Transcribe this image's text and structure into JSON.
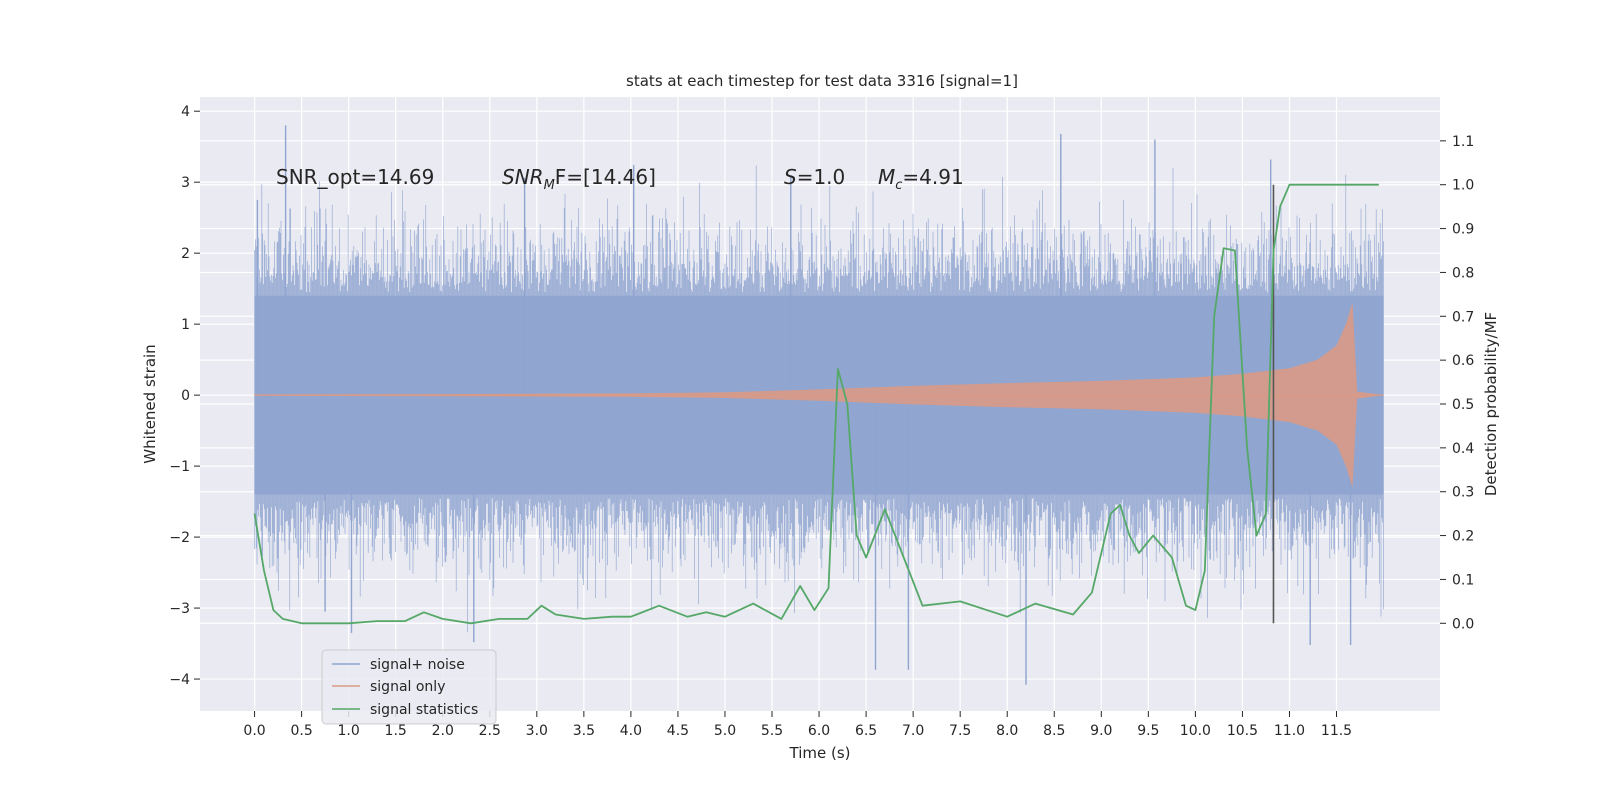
{
  "chart_data": {
    "type": "line",
    "title": "stats at each timestep for test data 3316 [signal=1]",
    "xlabel": "Time (s)",
    "ylabel": "Whitened strain",
    "y2label": "Detection probability/MF",
    "xlim": [
      -0.58,
      12.6
    ],
    "ylim": [
      -4.45,
      4.2
    ],
    "y2lim": [
      -0.2,
      1.2
    ],
    "x_ticks": [
      "0.0",
      "0.5",
      "1.0",
      "1.5",
      "2.0",
      "2.5",
      "3.0",
      "3.5",
      "4.0",
      "4.5",
      "5.0",
      "5.5",
      "6.0",
      "6.5",
      "7.0",
      "7.5",
      "8.0",
      "8.5",
      "9.0",
      "9.5",
      "10.0",
      "10.5",
      "11.0",
      "11.5"
    ],
    "y_ticks": [
      "4",
      "3",
      "2",
      "1",
      "0",
      "−1",
      "−2",
      "−3",
      "−4"
    ],
    "y2_ticks": [
      "1.1",
      "1.0",
      "0.9",
      "0.8",
      "0.7",
      "0.6",
      "0.5",
      "0.4",
      "0.3",
      "0.2",
      "0.1",
      "0.0"
    ],
    "grid": true,
    "legend_position": "lower-left",
    "colors": {
      "noise": "#8fa4cf",
      "signal": "#d99a85",
      "stats": "#55a868",
      "marker": "#555555",
      "plot_bg": "#eaeaf2",
      "grid": "#ffffff"
    },
    "annotations": {
      "snr_opt": "SNR_opt=14.69",
      "snr_mf_main": "SNR",
      "snr_mf_sub": "M",
      "snr_mf_tail": "F=[14.46]",
      "s_main": "S",
      "s_tail": "=1.0",
      "mc_main": "M",
      "mc_sub": "c",
      "mc_tail": "=4.91"
    },
    "series": [
      {
        "name": "signal+ noise",
        "x_range": [
          0.0,
          12.0
        ],
        "typical_band": [
          -1.4,
          1.4
        ],
        "peaks": [
          [
            0.03,
            2.75
          ],
          [
            0.33,
            3.8
          ],
          [
            0.75,
            -3.05
          ],
          [
            1.03,
            -3.35
          ],
          [
            2.33,
            -3.48
          ],
          [
            2.87,
            3.06
          ],
          [
            4.03,
            3.24
          ],
          [
            5.7,
            3.08
          ],
          [
            6.6,
            -3.87
          ],
          [
            6.95,
            -3.87
          ],
          [
            8.2,
            -4.08
          ],
          [
            8.57,
            3.68
          ],
          [
            9.57,
            3.6
          ],
          [
            10.8,
            3.32
          ],
          [
            11.22,
            -3.52
          ],
          [
            11.65,
            -3.52
          ]
        ]
      },
      {
        "name": "signal only",
        "x_range": [
          0.0,
          12.0
        ],
        "envelope": [
          [
            0.0,
            0.01
          ],
          [
            2.0,
            0.015
          ],
          [
            4.0,
            0.025
          ],
          [
            5.0,
            0.04
          ],
          [
            6.0,
            0.08
          ],
          [
            7.0,
            0.13
          ],
          [
            8.0,
            0.17
          ],
          [
            9.0,
            0.2
          ],
          [
            10.0,
            0.25
          ],
          [
            10.5,
            0.3
          ],
          [
            11.0,
            0.38
          ],
          [
            11.3,
            0.5
          ],
          [
            11.5,
            0.7
          ],
          [
            11.6,
            1.0
          ],
          [
            11.67,
            1.3
          ],
          [
            11.72,
            0.05
          ],
          [
            12.0,
            0.0
          ]
        ]
      },
      {
        "name": "signal statistics",
        "axis": "right",
        "x": [
          0.0,
          0.1,
          0.2,
          0.3,
          0.5,
          0.7,
          1.0,
          1.3,
          1.6,
          1.8,
          2.0,
          2.3,
          2.6,
          2.9,
          3.05,
          3.2,
          3.5,
          3.8,
          4.0,
          4.3,
          4.6,
          4.8,
          5.0,
          5.3,
          5.6,
          5.8,
          5.95,
          6.1,
          6.2,
          6.3,
          6.4,
          6.5,
          6.7,
          6.9,
          7.1,
          7.5,
          8.0,
          8.3,
          8.7,
          8.9,
          9.1,
          9.2,
          9.3,
          9.4,
          9.55,
          9.75,
          9.9,
          10.0,
          10.1,
          10.2,
          10.3,
          10.42,
          10.55,
          10.65,
          10.75,
          10.83,
          10.9,
          11.0,
          11.2,
          11.5,
          11.6,
          11.8,
          11.95
        ],
        "values": [
          0.25,
          0.12,
          0.03,
          0.01,
          0.0,
          0.0,
          0.0,
          0.005,
          0.005,
          0.025,
          0.01,
          0.0,
          0.01,
          0.01,
          0.04,
          0.02,
          0.01,
          0.015,
          0.015,
          0.04,
          0.015,
          0.025,
          0.015,
          0.045,
          0.01,
          0.085,
          0.03,
          0.08,
          0.58,
          0.5,
          0.2,
          0.15,
          0.26,
          0.15,
          0.04,
          0.05,
          0.015,
          0.045,
          0.02,
          0.07,
          0.25,
          0.27,
          0.2,
          0.16,
          0.2,
          0.15,
          0.04,
          0.03,
          0.12,
          0.7,
          0.855,
          0.85,
          0.4,
          0.2,
          0.25,
          0.85,
          0.95,
          1.0,
          1.0,
          1.0,
          1.0,
          1.0,
          1.0
        ]
      }
    ],
    "vertical_marker_x": 10.83
  }
}
